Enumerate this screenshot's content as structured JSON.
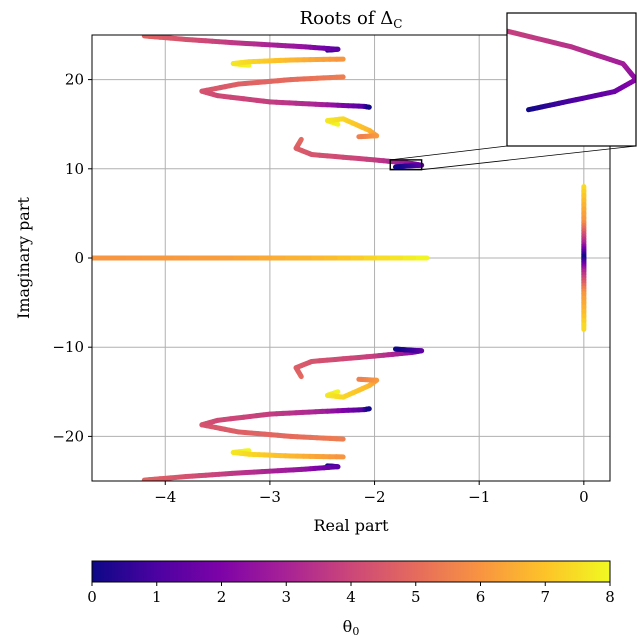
{
  "chart_data": {
    "type": "scatter",
    "title": "Roots of ",
    "title_symbol": "Δ",
    "title_subscript": "C",
    "xlabel": "Real part",
    "ylabel": "Imaginary part",
    "xlim": [
      -4.7,
      0.25
    ],
    "ylim": [
      -25,
      25
    ],
    "xticks": [
      {
        "value": -4,
        "label": "−4"
      },
      {
        "value": -3,
        "label": "−3"
      },
      {
        "value": -2,
        "label": "−2"
      },
      {
        "value": -1,
        "label": "−1"
      },
      {
        "value": 0,
        "label": "0"
      }
    ],
    "yticks": [
      {
        "value": 20,
        "label": "20"
      },
      {
        "value": 10,
        "label": "10"
      },
      {
        "value": 0,
        "label": "0"
      },
      {
        "value": -10,
        "label": "−10"
      },
      {
        "value": -20,
        "label": "−20"
      }
    ],
    "grid": true,
    "colormap": "plasma",
    "colorbar": {
      "label": "θ",
      "label_subscript": "0",
      "range": [
        0,
        8
      ],
      "ticks": [
        "0",
        "1",
        "2",
        "3",
        "4",
        "5",
        "6",
        "7",
        "8"
      ]
    },
    "branches": [
      {
        "points": [
          [
            -2.45,
            23.3,
            0
          ],
          [
            -2.35,
            23.4,
            1.2
          ],
          [
            -2.7,
            23.7,
            2.5
          ],
          [
            -3.3,
            24.1,
            3.5
          ],
          [
            -3.8,
            24.5,
            4.3
          ],
          [
            -4.2,
            24.9,
            4.8
          ]
        ]
      },
      {
        "points": [
          [
            -3.2,
            21.6,
            8
          ],
          [
            -3.35,
            21.8,
            7.7
          ],
          [
            -3.2,
            22.0,
            7.4
          ],
          [
            -2.8,
            22.2,
            6.8
          ],
          [
            -2.3,
            22.3,
            6.0
          ]
        ]
      },
      {
        "points": [
          [
            -2.3,
            20.3,
            5.5
          ],
          [
            -2.8,
            20.0,
            5.0
          ],
          [
            -3.3,
            19.5,
            4.7
          ],
          [
            -3.65,
            18.7,
            4.4
          ],
          [
            -3.5,
            18.2,
            4.1
          ],
          [
            -3.0,
            17.5,
            3.8
          ],
          [
            -2.5,
            17.2,
            3.0
          ],
          [
            -2.1,
            17.0,
            1.2
          ],
          [
            -2.05,
            16.9,
            0
          ]
        ]
      },
      {
        "points": [
          [
            -2.35,
            15.0,
            8
          ],
          [
            -2.45,
            15.4,
            7.7
          ],
          [
            -2.3,
            15.6,
            7.4
          ],
          [
            -2.05,
            14.3,
            6.8
          ],
          [
            -1.98,
            13.7,
            6.2
          ],
          [
            -2.15,
            13.6,
            5.5
          ]
        ]
      },
      {
        "points": [
          [
            -2.7,
            13.3,
            5.0
          ],
          [
            -2.75,
            12.3,
            4.7
          ],
          [
            -2.6,
            11.6,
            4.4
          ],
          [
            -2.0,
            11.0,
            3.8
          ],
          [
            -1.65,
            10.6,
            2.5
          ],
          [
            -1.55,
            10.4,
            1.5
          ],
          [
            -1.7,
            10.3,
            0.5
          ],
          [
            -1.8,
            10.2,
            0
          ]
        ]
      },
      {
        "points": [
          [
            -2.45,
            -23.3,
            0
          ],
          [
            -2.35,
            -23.4,
            1.2
          ],
          [
            -2.7,
            -23.7,
            2.5
          ],
          [
            -3.3,
            -24.1,
            3.5
          ],
          [
            -3.8,
            -24.5,
            4.3
          ],
          [
            -4.2,
            -24.9,
            4.8
          ]
        ]
      },
      {
        "points": [
          [
            -3.2,
            -21.6,
            8
          ],
          [
            -3.35,
            -21.8,
            7.7
          ],
          [
            -3.2,
            -22.0,
            7.4
          ],
          [
            -2.8,
            -22.2,
            6.8
          ],
          [
            -2.3,
            -22.3,
            6.0
          ]
        ]
      },
      {
        "points": [
          [
            -2.3,
            -20.3,
            5.5
          ],
          [
            -2.8,
            -20.0,
            5.0
          ],
          [
            -3.3,
            -19.5,
            4.7
          ],
          [
            -3.65,
            -18.7,
            4.4
          ],
          [
            -3.5,
            -18.2,
            4.1
          ],
          [
            -3.0,
            -17.5,
            3.8
          ],
          [
            -2.5,
            -17.2,
            3.0
          ],
          [
            -2.1,
            -17.0,
            1.2
          ],
          [
            -2.05,
            -16.9,
            0
          ]
        ]
      },
      {
        "points": [
          [
            -2.35,
            -15.0,
            8
          ],
          [
            -2.45,
            -15.4,
            7.7
          ],
          [
            -2.3,
            -15.6,
            7.4
          ],
          [
            -2.05,
            -14.3,
            6.8
          ],
          [
            -1.98,
            -13.7,
            6.2
          ],
          [
            -2.15,
            -13.6,
            5.5
          ]
        ]
      },
      {
        "points": [
          [
            -2.7,
            -13.3,
            5.0
          ],
          [
            -2.75,
            -12.3,
            4.7
          ],
          [
            -2.6,
            -11.6,
            4.4
          ],
          [
            -2.0,
            -11.0,
            3.8
          ],
          [
            -1.65,
            -10.6,
            2.5
          ],
          [
            -1.55,
            -10.4,
            1.5
          ],
          [
            -1.7,
            -10.3,
            0.5
          ],
          [
            -1.8,
            -10.2,
            0
          ]
        ]
      },
      {
        "points": [
          [
            -1.5,
            0,
            8
          ],
          [
            -2.5,
            0,
            6.8
          ],
          [
            -3.5,
            0,
            6.2
          ],
          [
            -4.7,
            0,
            6.0
          ]
        ]
      },
      {
        "points": [
          [
            0,
            8,
            7.5
          ],
          [
            0,
            4,
            6
          ],
          [
            0,
            1.5,
            3
          ],
          [
            0,
            0,
            0
          ],
          [
            0,
            -1.5,
            3
          ],
          [
            0,
            -4,
            6
          ],
          [
            0,
            -8,
            7.5
          ]
        ]
      }
    ],
    "inset": {
      "xlim": [
        -1.85,
        -1.55
      ],
      "ylim": [
        9.9,
        11.0
      ],
      "branch": [
        [
          -1.8,
          10.2,
          0
        ],
        [
          -1.72,
          10.26,
          0.8
        ],
        [
          -1.6,
          10.35,
          1.6
        ],
        [
          -1.55,
          10.45,
          2.2
        ],
        [
          -1.58,
          10.58,
          2.8
        ],
        [
          -1.7,
          10.72,
          3.4
        ],
        [
          -1.85,
          10.85,
          3.8
        ]
      ]
    }
  }
}
